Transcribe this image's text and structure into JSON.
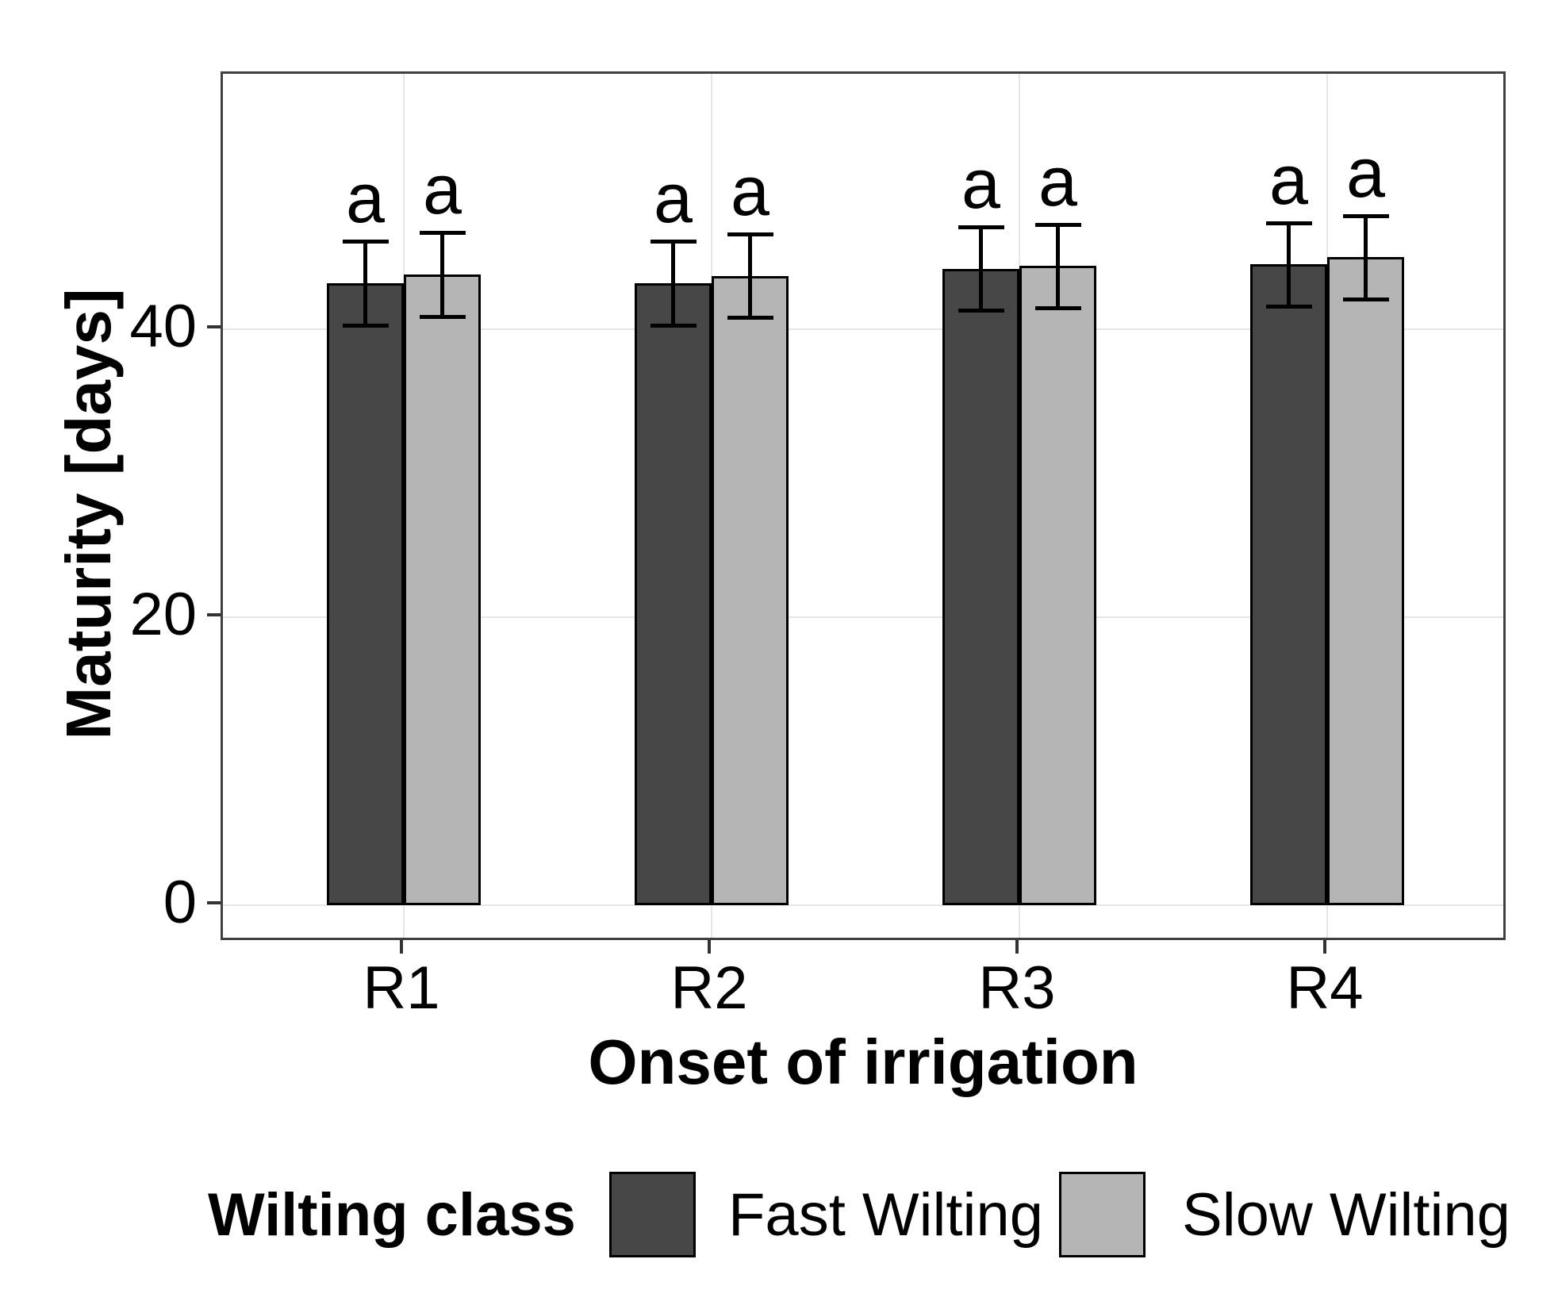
{
  "figure": {
    "background": "#ffffff"
  },
  "axes": {
    "x": {
      "title": "Onset of irrigation",
      "tick_labels": [
        "R1",
        "R2",
        "R3",
        "R4"
      ]
    },
    "y": {
      "title": "Maturity [days]",
      "tick_labels": [
        "0",
        "20",
        "40"
      ]
    }
  },
  "legend": {
    "title": "Wilting class",
    "items": [
      {
        "label": "Fast Wilting",
        "color": "#474747"
      },
      {
        "label": "Slow Wilting",
        "color": "#b5b5b5"
      }
    ]
  },
  "chart_data": {
    "type": "bar",
    "title": "",
    "xlabel": "Onset of irrigation",
    "ylabel": "Maturity [days]",
    "categories": [
      "R1",
      "R2",
      "R3",
      "R4"
    ],
    "series": [
      {
        "name": "Fast Wilting",
        "color": "#474747",
        "values": [
          43.2,
          43.2,
          44.2,
          44.5
        ],
        "error_low": [
          40.3,
          40.3,
          41.3,
          41.6
        ],
        "error_high": [
          46.1,
          46.1,
          47.1,
          47.4
        ],
        "bar_labels": [
          "a",
          "a",
          "a",
          "a"
        ]
      },
      {
        "name": "Slow Wilting",
        "color": "#b5b5b5",
        "values": [
          43.8,
          43.7,
          44.4,
          45.0
        ],
        "error_low": [
          40.9,
          40.8,
          41.5,
          42.1
        ],
        "error_high": [
          46.7,
          46.6,
          47.3,
          47.9
        ],
        "bar_labels": [
          "a",
          "a",
          "a",
          "a"
        ]
      }
    ],
    "yticks": [
      0,
      20,
      40
    ],
    "ylim": [
      -2.6,
      57.7
    ],
    "grid": "major-only",
    "error_bars": true,
    "bar_outline_color": "#000000",
    "legend_position": "bottom"
  }
}
